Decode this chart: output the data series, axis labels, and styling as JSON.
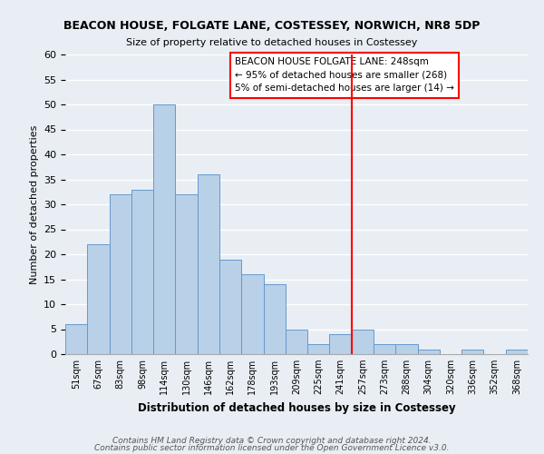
{
  "title": "BEACON HOUSE, FOLGATE LANE, COSTESSEY, NORWICH, NR8 5DP",
  "subtitle": "Size of property relative to detached houses in Costessey",
  "xlabel": "Distribution of detached houses by size in Costessey",
  "ylabel": "Number of detached properties",
  "bar_labels": [
    "51sqm",
    "67sqm",
    "83sqm",
    "98sqm",
    "114sqm",
    "130sqm",
    "146sqm",
    "162sqm",
    "178sqm",
    "193sqm",
    "209sqm",
    "225sqm",
    "241sqm",
    "257sqm",
    "273sqm",
    "288sqm",
    "304sqm",
    "320sqm",
    "336sqm",
    "352sqm",
    "368sqm"
  ],
  "bar_values": [
    6,
    22,
    32,
    33,
    50,
    32,
    36,
    19,
    16,
    14,
    5,
    2,
    4,
    5,
    2,
    2,
    1,
    0,
    1,
    0,
    1
  ],
  "bar_color": "#b8d0e8",
  "bar_edge_color": "#6699cc",
  "vline_x": 12.5,
  "vline_color": "red",
  "annotation_text": "BEACON HOUSE FOLGATE LANE: 248sqm\n← 95% of detached houses are smaller (268)\n5% of semi-detached houses are larger (14) →",
  "annotation_box_color": "white",
  "annotation_box_edge_color": "red",
  "ylim": [
    0,
    60
  ],
  "yticks": [
    0,
    5,
    10,
    15,
    20,
    25,
    30,
    35,
    40,
    45,
    50,
    55,
    60
  ],
  "footnote1": "Contains HM Land Registry data © Crown copyright and database right 2024.",
  "footnote2": "Contains public sector information licensed under the Open Government Licence v3.0.",
  "bg_color": "#e8eef4",
  "grid_color": "white"
}
